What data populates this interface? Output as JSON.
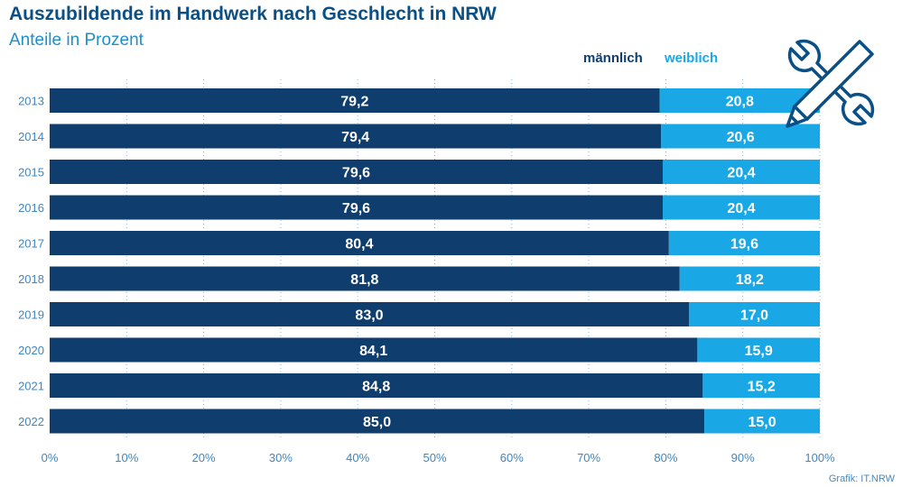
{
  "chart_data": {
    "type": "bar",
    "orientation": "horizontal",
    "stacked": true,
    "title": "Auszubildende im Handwerk nach Geschlecht in NRW",
    "subtitle": "Anteile in Prozent",
    "categories": [
      "2013",
      "2014",
      "2015",
      "2016",
      "2017",
      "2018",
      "2019",
      "2020",
      "2021",
      "2022"
    ],
    "series": [
      {
        "name": "männlich",
        "color": "#0f3d6e",
        "values": [
          79.2,
          79.4,
          79.6,
          79.6,
          80.4,
          81.8,
          83.0,
          84.1,
          84.8,
          85.0
        ],
        "labels": [
          "79,2",
          "79,4",
          "79,6",
          "79,6",
          "80,4",
          "81,8",
          "83,0",
          "84,1",
          "84,8",
          "85,0"
        ]
      },
      {
        "name": "weiblich",
        "color": "#19a8e5",
        "values": [
          20.8,
          20.6,
          20.4,
          20.4,
          19.6,
          18.2,
          17.0,
          15.9,
          15.2,
          15.0
        ],
        "labels": [
          "20,8",
          "20,6",
          "20,4",
          "20,4",
          "19,6",
          "18,2",
          "17,0",
          "15,9",
          "15,2",
          "15,0"
        ]
      }
    ],
    "xlim": [
      0,
      100
    ],
    "xticks": [
      "0%",
      "10%",
      "20%",
      "30%",
      "40%",
      "50%",
      "60%",
      "70%",
      "80%",
      "90%",
      "100%"
    ],
    "grid": "vertical-dotted",
    "legend_position": "top-right"
  },
  "source": "Grafik: IT.NRW",
  "icon": "wrench-pencil-icon"
}
